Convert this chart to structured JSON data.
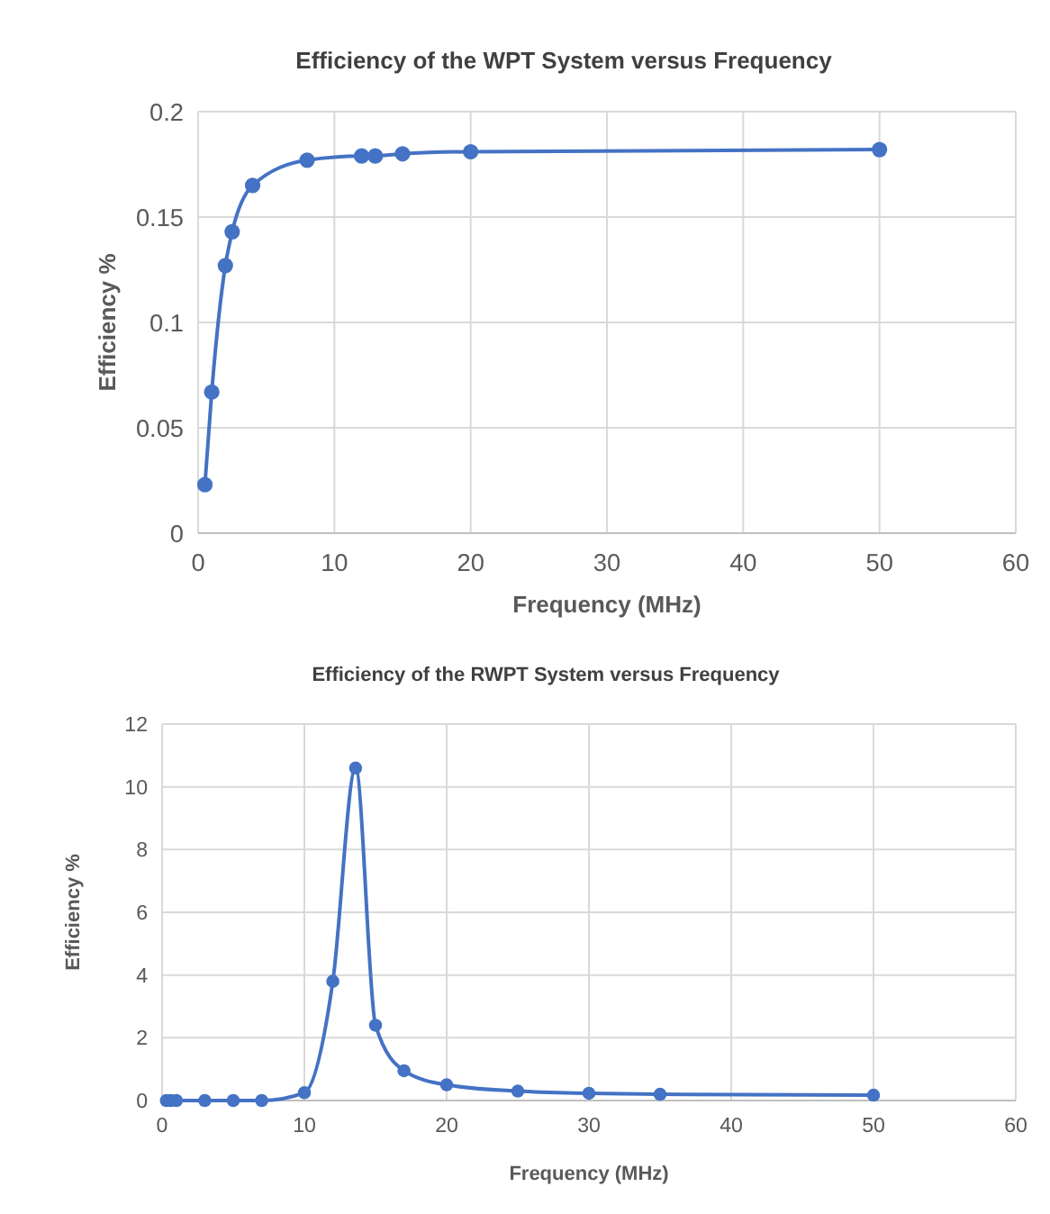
{
  "chart_data": [
    {
      "type": "line",
      "title": "Efficiency of the WPT System versus Frequency",
      "xlabel": "Frequency (MHz)",
      "ylabel": "Efficiency %",
      "x": [
        0.5,
        1,
        2,
        2.5,
        4,
        8,
        12,
        13,
        15,
        20,
        50
      ],
      "series": [
        {
          "color": "#4472c4",
          "values": [
            0.023,
            0.067,
            0.127,
            0.143,
            0.165,
            0.177,
            0.179,
            0.179,
            0.18,
            0.181,
            0.182
          ]
        }
      ],
      "xlim": [
        0,
        60
      ],
      "xticks": [
        0,
        10,
        20,
        30,
        40,
        50,
        60
      ],
      "ylim": [
        0,
        0.2
      ],
      "yticks": [
        0,
        0.05,
        0.1,
        0.15,
        0.2
      ],
      "grid": true,
      "marker": "circle"
    },
    {
      "type": "line",
      "title": "Efficiency of the RWPT System versus Frequency",
      "xlabel": "Frequency (MHz)",
      "ylabel": "Efficiency %",
      "x": [
        0.3,
        0.6,
        1,
        3,
        5,
        7,
        10,
        12,
        13.6,
        15,
        17,
        20,
        25,
        30,
        35,
        50
      ],
      "series": [
        {
          "color": "#4472c4",
          "values": [
            0,
            0,
            0,
            0,
            0,
            0,
            0.25,
            3.8,
            10.6,
            2.4,
            0.95,
            0.5,
            0.3,
            0.23,
            0.2,
            0.17
          ]
        }
      ],
      "xlim": [
        0,
        60
      ],
      "xticks": [
        0,
        10,
        20,
        30,
        40,
        50,
        60
      ],
      "ylim": [
        0,
        12
      ],
      "yticks": [
        0,
        2,
        4,
        6,
        8,
        10,
        12
      ],
      "grid": true,
      "marker": "circle"
    }
  ]
}
